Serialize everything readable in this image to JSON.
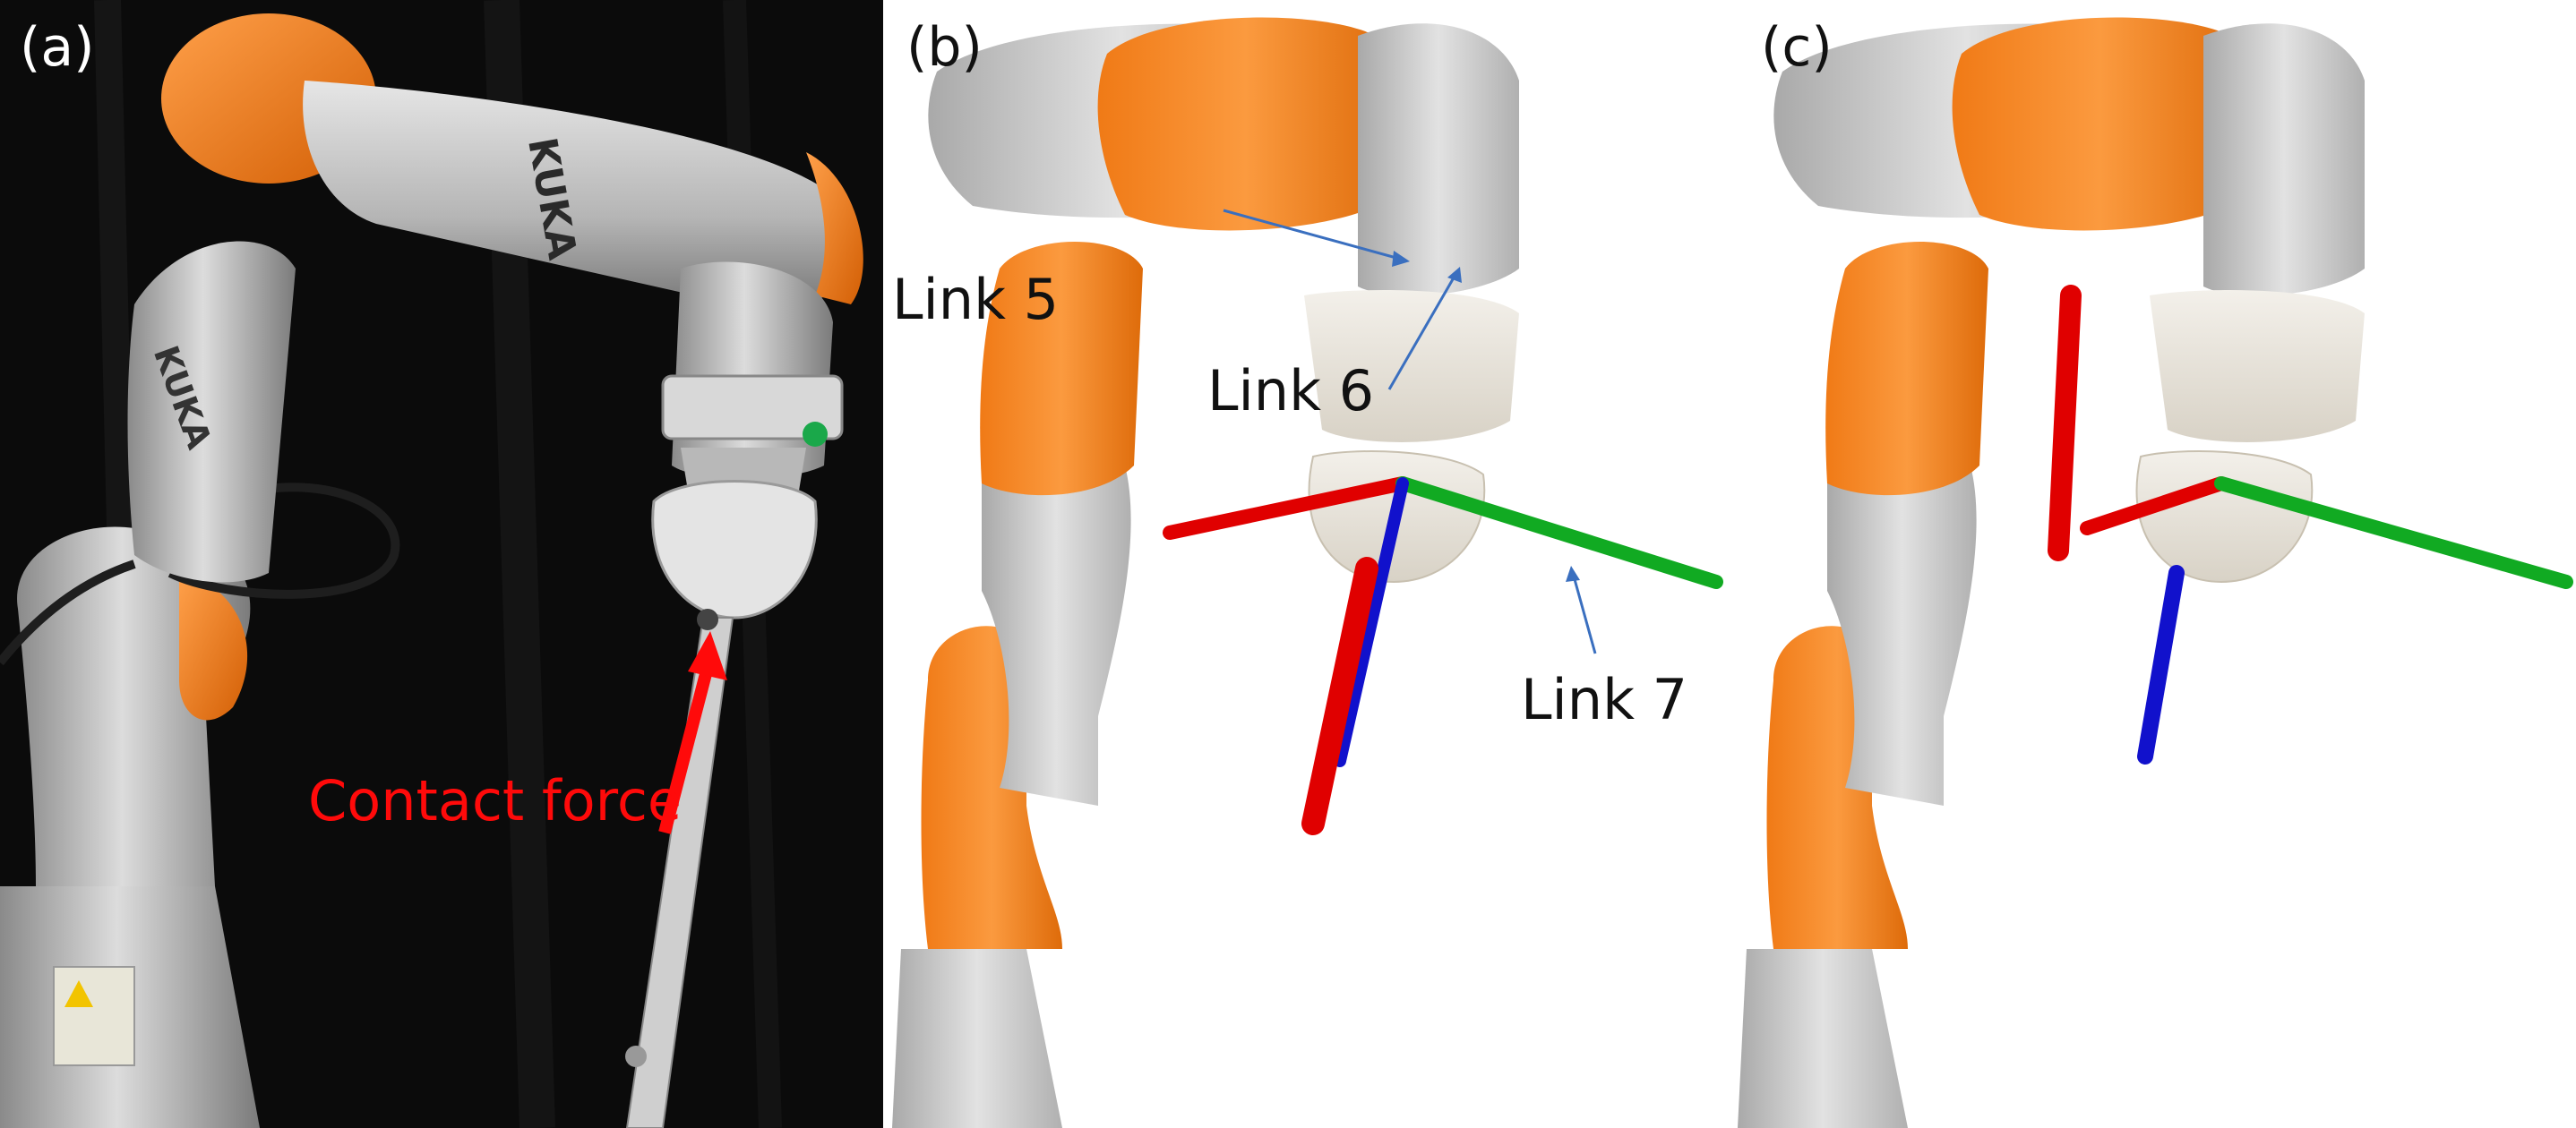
{
  "panels": [
    {
      "label": "(a)",
      "content": "photo of KUKA robot arm pressing on a rod"
    },
    {
      "label": "(b)",
      "content": "rendered robot arm with coordinate axes"
    },
    {
      "label": "(c)",
      "content": "rendered robot arm with coordinate axes"
    }
  ],
  "panel_a": {
    "contact_label": "Contact force",
    "brand_text": "KUKA",
    "colors": {
      "background": "#0d0d0d",
      "arm": "#c9c9c9",
      "accent": "#f07d17",
      "force_arrow": "#ff0a0a"
    }
  },
  "panel_b": {
    "link_labels": [
      "Link 5",
      "Link 6",
      "Link 7"
    ],
    "colors": {
      "arm": "#d2d2d2",
      "accent": "#f28020",
      "x_axis": "#e00000",
      "y_axis": "#11aa22",
      "z_axis": "#1111cc",
      "leader": "#3a6fbf"
    }
  },
  "panel_c": {
    "colors": {
      "arm": "#d2d2d2",
      "accent": "#f28020",
      "x_axis": "#e00000",
      "y_axis": "#11aa22",
      "z_axis": "#1111cc"
    }
  }
}
